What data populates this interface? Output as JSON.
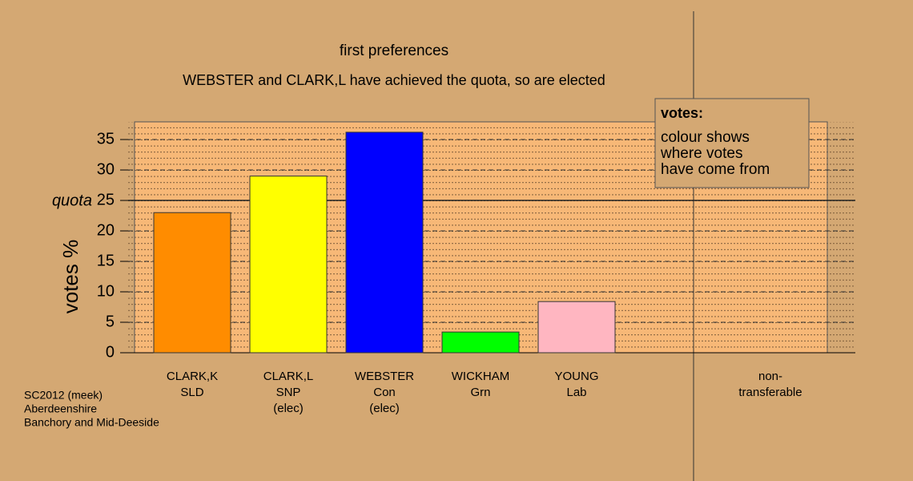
{
  "chart_data": {
    "type": "bar",
    "title": "first preferences",
    "subtitle": "WEBSTER and CLARK,L have achieved the quota, so are elected",
    "y_label": "votes %",
    "labels": [
      [
        "CLARK,K",
        "SLD"
      ],
      [
        "CLARK,L",
        "SNP"
      ],
      [
        "WEBSTER",
        "Con"
      ],
      [
        "WICKHAM",
        "Grn"
      ],
      [
        "YOUNG",
        "Lab"
      ],
      [
        "non-",
        "transferable"
      ]
    ],
    "notes": [
      null,
      "(elec)",
      "(elec)",
      null,
      null,
      null
    ],
    "values": [
      23,
      29,
      36.2,
      3.4,
      8.4,
      0
    ],
    "colors": [
      "#ff8c00",
      "#ffff00",
      "#0000ff",
      "#00ff00",
      "#ffb6c1",
      "#ffb6c1"
    ],
    "ylim": [
      0,
      37.9
    ],
    "yticks": [
      0,
      5,
      10,
      15,
      20,
      25,
      30,
      35
    ],
    "grid": true,
    "quota": {
      "label": "quota",
      "value": 25
    },
    "legend": {
      "title": "votes:",
      "lines": [
        "colour shows",
        "where votes",
        "have come from"
      ]
    },
    "footer": [
      "SC2012 (meek)",
      "Aberdeenshire",
      "Banchory and Mid-Deeside"
    ]
  }
}
